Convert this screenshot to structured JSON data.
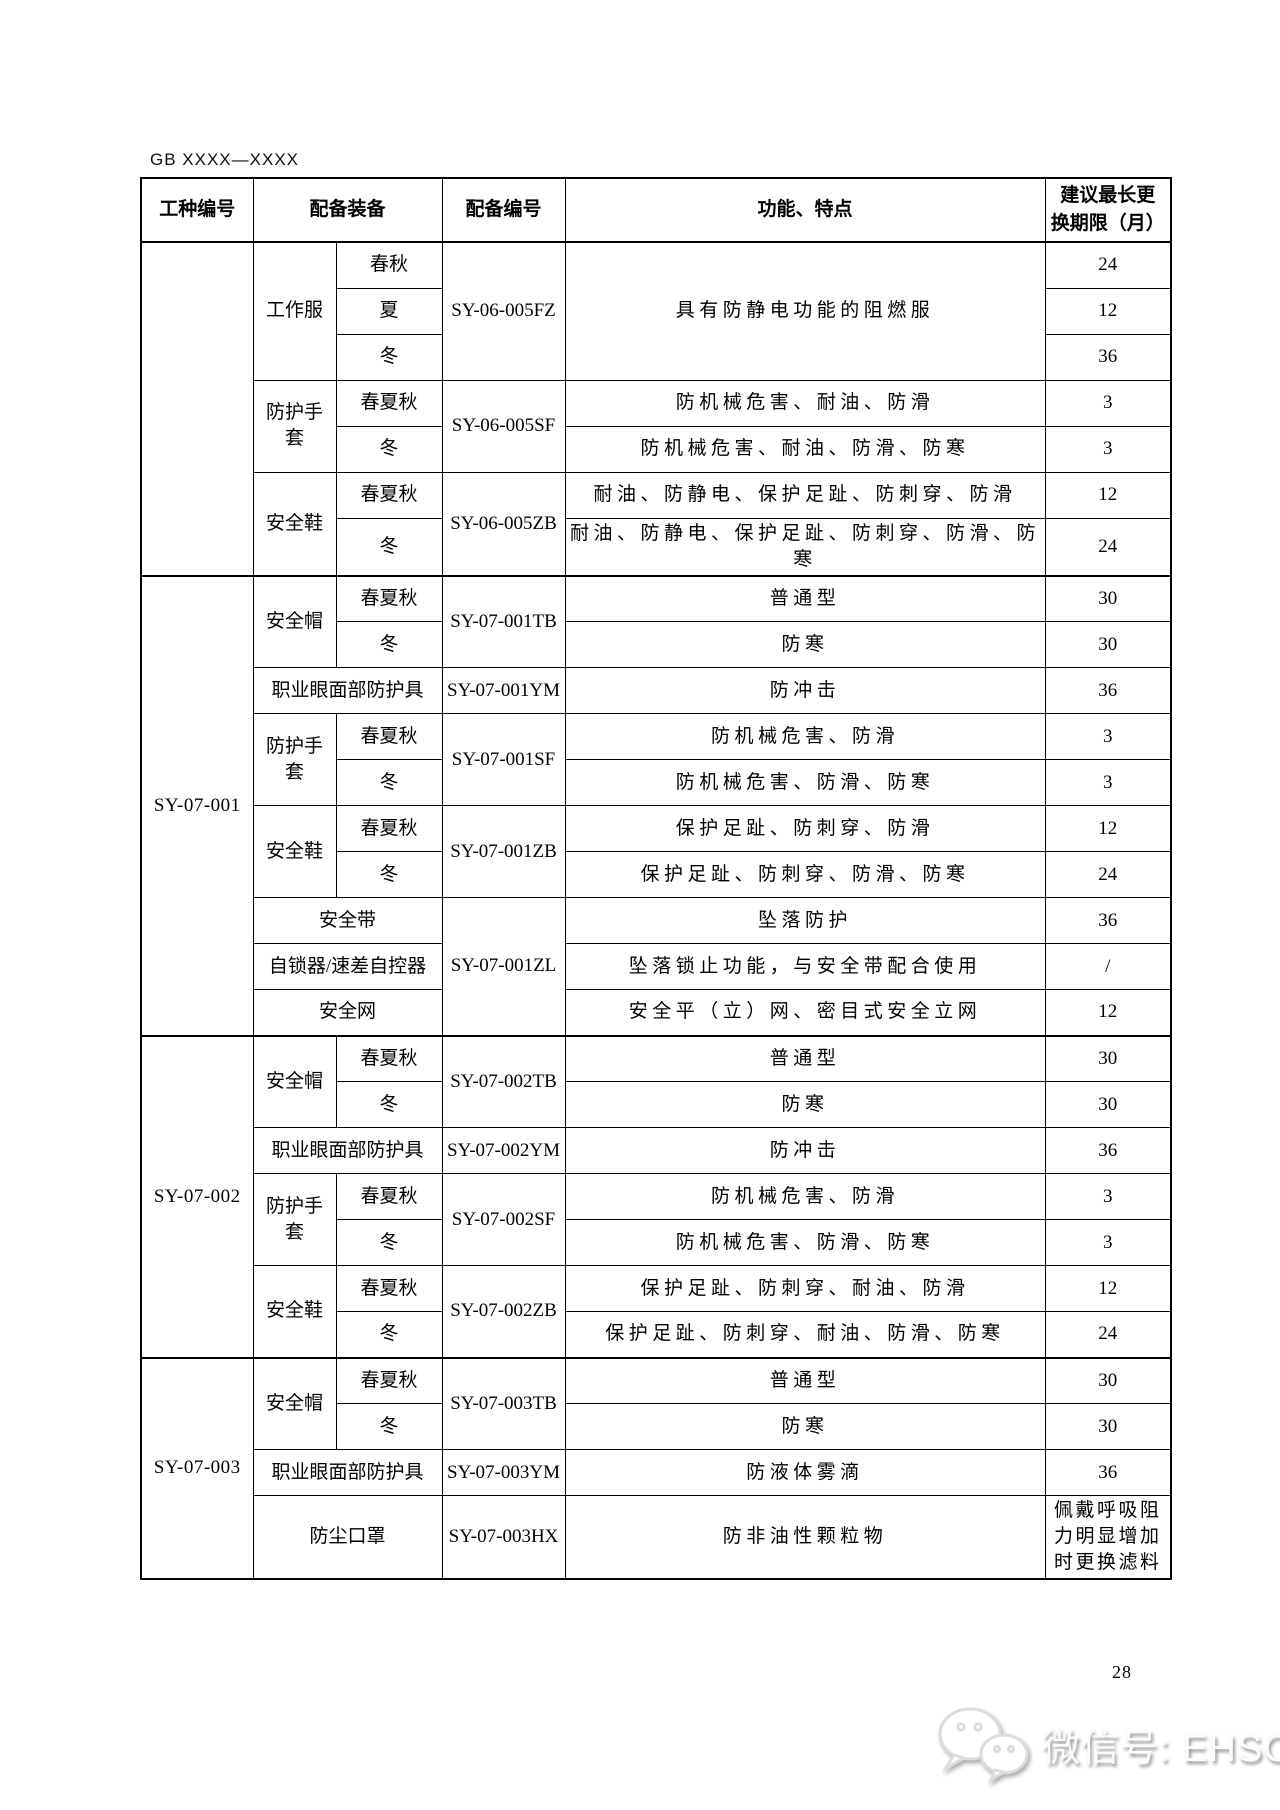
{
  "page": {
    "standard_code": "GB XXXX—XXXX",
    "page_number": "28"
  },
  "watermark": {
    "icon": "wechat-icon",
    "label": "微信号: EHSCity"
  },
  "table": {
    "columns": [
      "工种编号",
      "配备装备",
      "配备编号",
      "功能、特点",
      "建议最长更\n换期限（月）"
    ],
    "rows": [
      [
        {
          "col": "job",
          "t": "",
          "rs": 7
        },
        {
          "col": "item",
          "t": "工作服",
          "rs": 3
        },
        {
          "col": "season",
          "t": "春秋"
        },
        {
          "col": "code",
          "t": "SY-06-005FZ",
          "rs": 3
        },
        {
          "col": "feat",
          "t": "具有防静电功能的阻燃服",
          "rs": 3
        },
        {
          "col": "months",
          "t": "24"
        }
      ],
      [
        {
          "col": "season",
          "t": "夏"
        },
        {
          "col": "months",
          "t": "12"
        }
      ],
      [
        {
          "col": "season",
          "t": "冬"
        },
        {
          "col": "months",
          "t": "36"
        }
      ],
      [
        {
          "col": "item",
          "t": "防护手套",
          "rs": 2
        },
        {
          "col": "season",
          "t": "春夏秋"
        },
        {
          "col": "code",
          "t": "SY-06-005SF",
          "rs": 2
        },
        {
          "col": "feat",
          "t": "防机械危害、耐油、防滑"
        },
        {
          "col": "months",
          "t": "3"
        }
      ],
      [
        {
          "col": "season",
          "t": "冬"
        },
        {
          "col": "feat",
          "t": "防机械危害、耐油、防滑、防寒"
        },
        {
          "col": "months",
          "t": "3"
        }
      ],
      [
        {
          "col": "item",
          "t": "安全鞋",
          "rs": 2
        },
        {
          "col": "season",
          "t": "春夏秋"
        },
        {
          "col": "code",
          "t": "SY-06-005ZB",
          "rs": 2
        },
        {
          "col": "feat",
          "t": "耐油、防静电、保护足趾、防刺穿、防滑"
        },
        {
          "col": "months",
          "t": "12"
        }
      ],
      [
        {
          "col": "season",
          "t": "冬"
        },
        {
          "col": "feat",
          "t": "耐油、防静电、保护足趾、防刺穿、防滑、防寒"
        },
        {
          "col": "months",
          "t": "24"
        }
      ],
      [
        {
          "col": "job",
          "t": "SY-07-001",
          "rs": 10
        },
        {
          "col": "item",
          "t": "安全帽",
          "rs": 2
        },
        {
          "col": "season",
          "t": "春夏秋"
        },
        {
          "col": "code",
          "t": "SY-07-001TB",
          "rs": 2
        },
        {
          "col": "feat",
          "t": "普通型"
        },
        {
          "col": "months",
          "t": "30"
        }
      ],
      [
        {
          "col": "season",
          "t": "冬"
        },
        {
          "col": "feat",
          "t": "防寒"
        },
        {
          "col": "months",
          "t": "30"
        }
      ],
      [
        {
          "col": "item",
          "t": "职业眼面部防护具",
          "cs": 2
        },
        {
          "col": "code",
          "t": "SY-07-001YM"
        },
        {
          "col": "feat",
          "t": "防冲击"
        },
        {
          "col": "months",
          "t": "36"
        }
      ],
      [
        {
          "col": "item",
          "t": "防护手套",
          "rs": 2
        },
        {
          "col": "season",
          "t": "春夏秋"
        },
        {
          "col": "code",
          "t": "SY-07-001SF",
          "rs": 2
        },
        {
          "col": "feat",
          "t": "防机械危害、防滑"
        },
        {
          "col": "months",
          "t": "3"
        }
      ],
      [
        {
          "col": "season",
          "t": "冬"
        },
        {
          "col": "feat",
          "t": "防机械危害、防滑、防寒"
        },
        {
          "col": "months",
          "t": "3"
        }
      ],
      [
        {
          "col": "item",
          "t": "安全鞋",
          "rs": 2
        },
        {
          "col": "season",
          "t": "春夏秋"
        },
        {
          "col": "code",
          "t": "SY-07-001ZB",
          "rs": 2
        },
        {
          "col": "feat",
          "t": "保护足趾、防刺穿、防滑"
        },
        {
          "col": "months",
          "t": "12"
        }
      ],
      [
        {
          "col": "season",
          "t": "冬"
        },
        {
          "col": "feat",
          "t": "保护足趾、防刺穿、防滑、防寒"
        },
        {
          "col": "months",
          "t": "24"
        }
      ],
      [
        {
          "col": "item",
          "t": "安全带",
          "cs": 2
        },
        {
          "col": "code",
          "t": "SY-07-001ZL",
          "rs": 3
        },
        {
          "col": "feat",
          "t": "坠落防护"
        },
        {
          "col": "months",
          "t": "36"
        }
      ],
      [
        {
          "col": "item",
          "t": "自锁器/速差自控器",
          "cs": 2
        },
        {
          "col": "feat",
          "t": "坠落锁止功能，与安全带配合使用"
        },
        {
          "col": "months",
          "t": "/"
        }
      ],
      [
        {
          "col": "item",
          "t": "安全网",
          "cs": 2
        },
        {
          "col": "feat",
          "t": "安全平（立）网、密目式安全立网"
        },
        {
          "col": "months",
          "t": "12"
        }
      ],
      [
        {
          "col": "job",
          "t": "SY-07-002",
          "rs": 7
        },
        {
          "col": "item",
          "t": "安全帽",
          "rs": 2
        },
        {
          "col": "season",
          "t": "春夏秋"
        },
        {
          "col": "code",
          "t": "SY-07-002TB",
          "rs": 2
        },
        {
          "col": "feat",
          "t": "普通型"
        },
        {
          "col": "months",
          "t": "30"
        }
      ],
      [
        {
          "col": "season",
          "t": "冬"
        },
        {
          "col": "feat",
          "t": "防寒"
        },
        {
          "col": "months",
          "t": "30"
        }
      ],
      [
        {
          "col": "item",
          "t": "职业眼面部防护具",
          "cs": 2
        },
        {
          "col": "code",
          "t": "SY-07-002YM"
        },
        {
          "col": "feat",
          "t": "防冲击"
        },
        {
          "col": "months",
          "t": "36"
        }
      ],
      [
        {
          "col": "item",
          "t": "防护手套",
          "rs": 2
        },
        {
          "col": "season",
          "t": "春夏秋"
        },
        {
          "col": "code",
          "t": "SY-07-002SF",
          "rs": 2
        },
        {
          "col": "feat",
          "t": "防机械危害、防滑"
        },
        {
          "col": "months",
          "t": "3"
        }
      ],
      [
        {
          "col": "season",
          "t": "冬"
        },
        {
          "col": "feat",
          "t": "防机械危害、防滑、防寒"
        },
        {
          "col": "months",
          "t": "3"
        }
      ],
      [
        {
          "col": "item",
          "t": "安全鞋",
          "rs": 2
        },
        {
          "col": "season",
          "t": "春夏秋"
        },
        {
          "col": "code",
          "t": "SY-07-002ZB",
          "rs": 2
        },
        {
          "col": "feat",
          "t": "保护足趾、防刺穿、耐油、防滑"
        },
        {
          "col": "months",
          "t": "12"
        }
      ],
      [
        {
          "col": "season",
          "t": "冬"
        },
        {
          "col": "feat",
          "t": "保护足趾、防刺穿、耐油、防滑、防寒"
        },
        {
          "col": "months",
          "t": "24"
        }
      ],
      [
        {
          "col": "job",
          "t": "SY-07-003",
          "rs": 4
        },
        {
          "col": "item",
          "t": "安全帽",
          "rs": 2
        },
        {
          "col": "season",
          "t": "春夏秋"
        },
        {
          "col": "code",
          "t": "SY-07-003TB",
          "rs": 2
        },
        {
          "col": "feat",
          "t": "普通型"
        },
        {
          "col": "months",
          "t": "30"
        }
      ],
      [
        {
          "col": "season",
          "t": "冬"
        },
        {
          "col": "feat",
          "t": "防寒"
        },
        {
          "col": "months",
          "t": "30"
        }
      ],
      [
        {
          "col": "item",
          "t": "职业眼面部防护具",
          "cs": 2
        },
        {
          "col": "code",
          "t": "SY-07-003YM"
        },
        {
          "col": "feat",
          "t": "防液体雾滴"
        },
        {
          "col": "months",
          "t": "36"
        }
      ],
      [
        {
          "col": "item",
          "t": "防尘口罩",
          "cs": 2
        },
        {
          "col": "code",
          "t": "SY-07-003HX"
        },
        {
          "col": "feat",
          "t": "防非油性颗粒物"
        },
        {
          "col": "monthsText",
          "t": "佩戴呼吸阻力明显增加时更换滤料"
        }
      ]
    ]
  }
}
